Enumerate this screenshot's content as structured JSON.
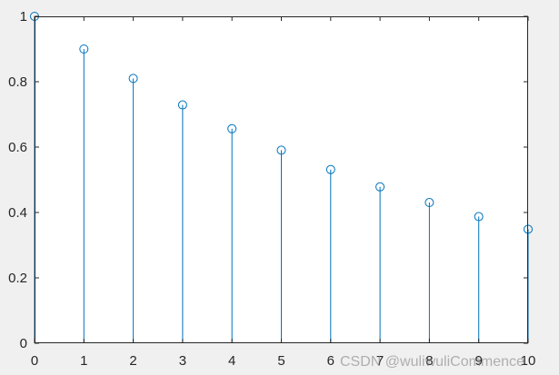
{
  "chart_data": {
    "type": "stem",
    "x": [
      0,
      1,
      2,
      3,
      4,
      5,
      6,
      7,
      8,
      9,
      10
    ],
    "y": [
      1.0,
      0.9,
      0.81,
      0.729,
      0.6561,
      0.5905,
      0.5314,
      0.4783,
      0.4305,
      0.3874,
      0.3487
    ],
    "xlim": [
      0,
      10
    ],
    "ylim": [
      0,
      1
    ],
    "xticks": [
      "0",
      "1",
      "2",
      "3",
      "4",
      "5",
      "6",
      "7",
      "8",
      "9",
      "10"
    ],
    "yticks": [
      "0",
      "0.2",
      "0.4",
      "0.6",
      "0.8",
      "1"
    ],
    "title": "",
    "xlabel": "",
    "ylabel": "",
    "grid": false,
    "colors": {
      "stem": "#0072bd",
      "axes": "#262626",
      "plot_bg": "#ffffff",
      "figure_bg": "#f0f0f0"
    }
  },
  "watermark": "CSDN @wuliwuliCommence"
}
